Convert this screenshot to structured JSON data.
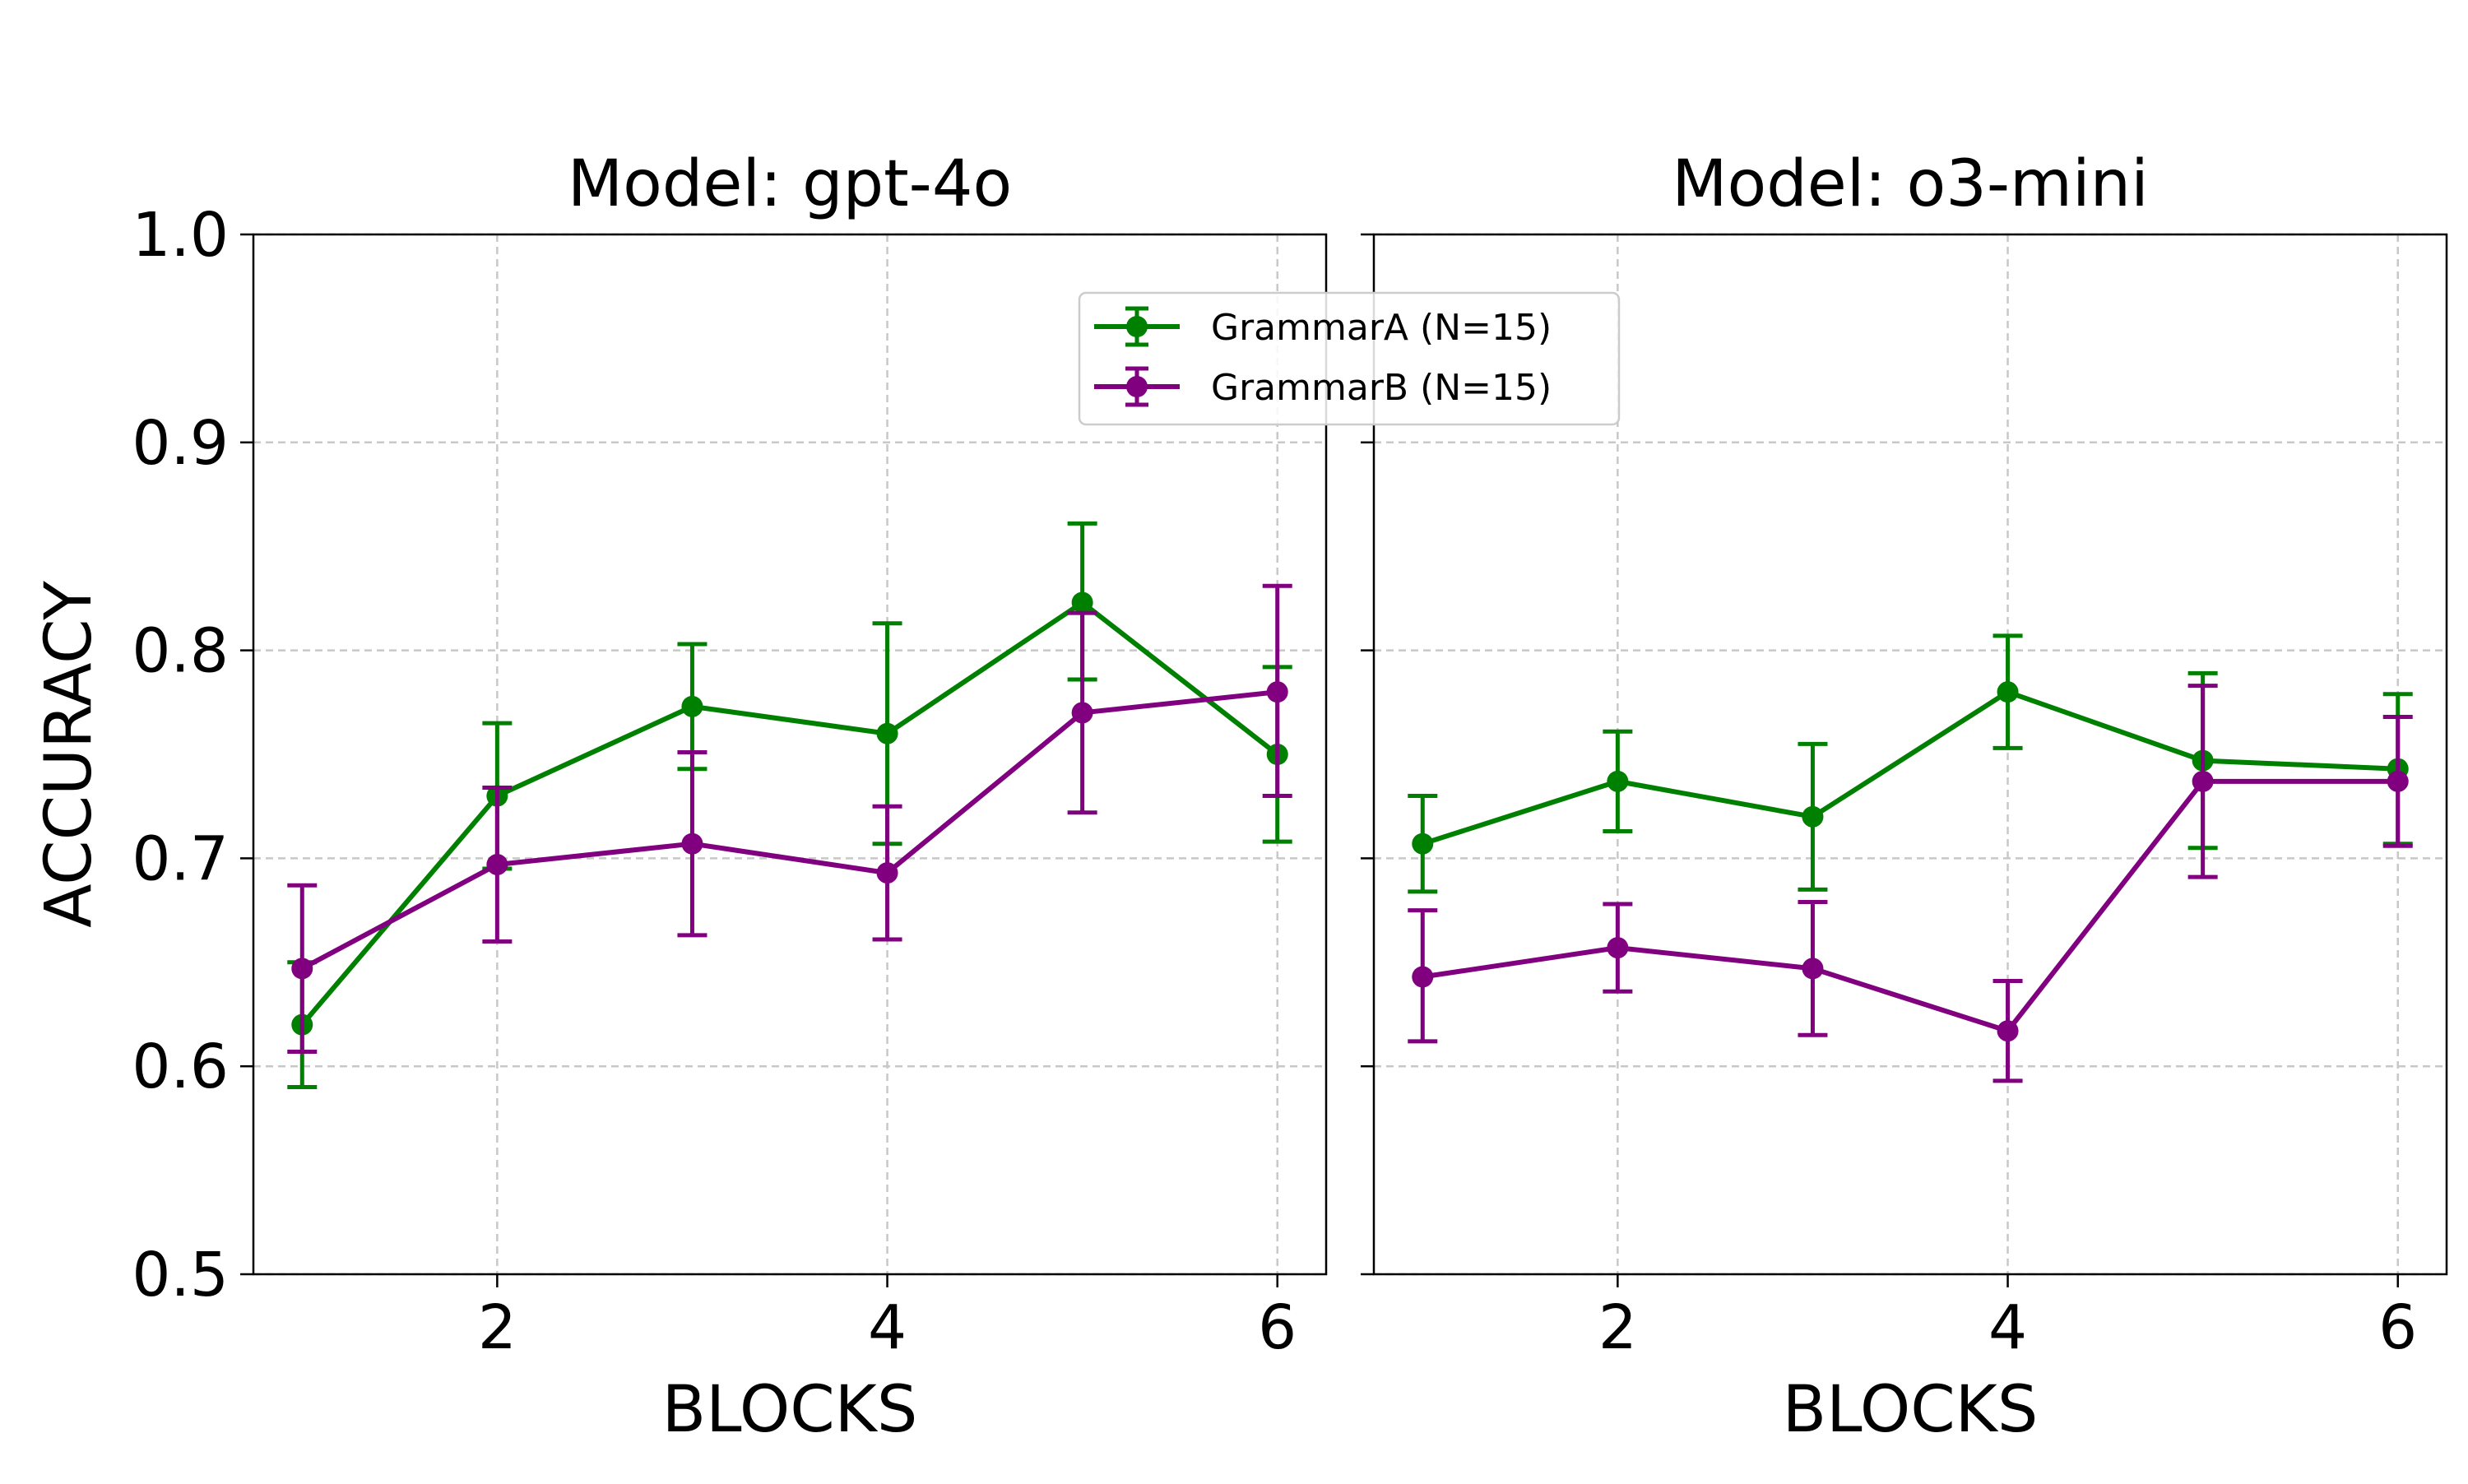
{
  "chart_data": {
    "type": "line",
    "ylabel": "ACCURACY",
    "ylim": [
      0.5,
      1.0
    ],
    "yticks": [
      "0.5",
      "0.6",
      "0.7",
      "0.8",
      "0.9",
      "1.0"
    ],
    "xlim": [
      0.75,
      6.25
    ],
    "xticks": [
      "2",
      "4",
      "6"
    ],
    "grid": true,
    "legend_position": "top-center",
    "colors": {
      "GrammarA": "#008000",
      "GrammarB": "#800080"
    },
    "legend": [
      "GrammarA (N=15)",
      "GrammarB (N=15)"
    ],
    "panels": [
      {
        "title": "Model: gpt-4o",
        "xlabel": "BLOCKS",
        "x": [
          1,
          2,
          3,
          4,
          5,
          6
        ],
        "series": [
          {
            "name": "GrammarA (N=15)",
            "key": "GrammarA",
            "values": [
              0.62,
              0.73,
              0.773,
              0.76,
              0.823,
              0.75
            ],
            "err_low": [
              0.59,
              0.695,
              0.743,
              0.707,
              0.786,
              0.708
            ],
            "err_high": [
              0.65,
              0.765,
              0.803,
              0.813,
              0.861,
              0.792
            ]
          },
          {
            "name": "GrammarB (N=15)",
            "key": "GrammarB",
            "values": [
              0.647,
              0.697,
              0.707,
              0.693,
              0.77,
              0.78
            ],
            "err_low": [
              0.607,
              0.66,
              0.663,
              0.661,
              0.722,
              0.73
            ],
            "err_high": [
              0.687,
              0.734,
              0.751,
              0.725,
              0.818,
              0.831
            ]
          }
        ]
      },
      {
        "title": "Model: o3-mini",
        "xlabel": "BLOCKS",
        "x": [
          1,
          2,
          3,
          4,
          5,
          6
        ],
        "series": [
          {
            "name": "GrammarA (N=15)",
            "key": "GrammarA",
            "values": [
              0.707,
              0.737,
              0.72,
              0.78,
              0.747,
              0.743
            ],
            "err_low": [
              0.684,
              0.713,
              0.685,
              0.753,
              0.705,
              0.707
            ],
            "err_high": [
              0.73,
              0.761,
              0.755,
              0.807,
              0.789,
              0.779
            ]
          },
          {
            "name": "GrammarB (N=15)",
            "key": "GrammarB",
            "values": [
              0.643,
              0.657,
              0.647,
              0.617,
              0.737,
              0.737
            ],
            "err_low": [
              0.612,
              0.636,
              0.615,
              0.593,
              0.691,
              0.706
            ],
            "err_high": [
              0.675,
              0.678,
              0.679,
              0.641,
              0.783,
              0.768
            ]
          }
        ]
      }
    ]
  }
}
